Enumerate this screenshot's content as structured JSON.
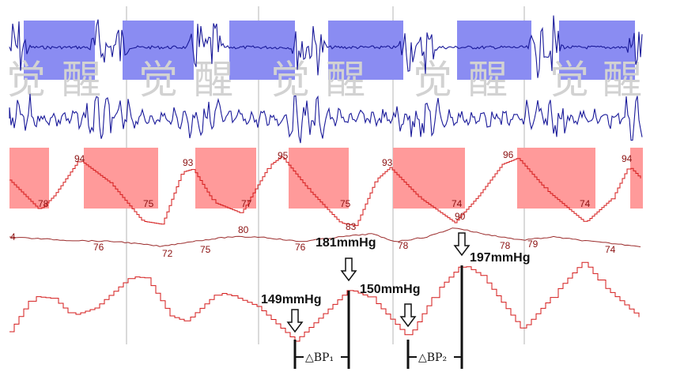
{
  "chart_data": {
    "type": "line",
    "title": "",
    "watermark": [
      "觉",
      "醒",
      "觉",
      "醒",
      "觉",
      "醒",
      "觉",
      "醒",
      "觉",
      "醒"
    ],
    "colors": {
      "eeg_trace": "#1a1a9a",
      "eeg_shade": "#8a8cf2",
      "bp_shade": "#ff9a9a",
      "bp_trace": "#d41a1a",
      "hr_trace": "#9b2b2b",
      "annotation": "#111111",
      "gridline": "#b4b4b4"
    },
    "bp_labels": {
      "peaks": [
        "94",
        "93",
        "95",
        "93",
        "96",
        "94"
      ],
      "troughs": [
        "78",
        "75",
        "77",
        "75",
        "74",
        "74"
      ]
    },
    "hr_labels": [
      "4",
      "76",
      "72",
      "75",
      "80",
      "76",
      "83",
      "78",
      "90",
      "78",
      "79",
      "74"
    ],
    "annotations": {
      "labels": [
        "149mmHg",
        "181mmHg",
        "150mmHg",
        "197mmHg"
      ],
      "deltas": [
        "△BP₁",
        "△BP₂"
      ]
    }
  }
}
